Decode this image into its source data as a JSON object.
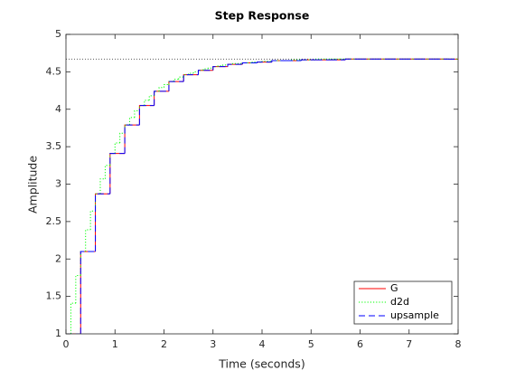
{
  "chart_data": {
    "type": "step",
    "title": "Step Response",
    "xlabel": "Time (seconds)",
    "ylabel": "Amplitude",
    "xlim": [
      0,
      8
    ],
    "ylim": [
      1,
      5
    ],
    "xticks": [
      0,
      1,
      2,
      3,
      4,
      5,
      6,
      7,
      8
    ],
    "yticks": [
      1,
      1.5,
      2,
      2.5,
      3,
      3.5,
      4,
      4.5,
      5
    ],
    "steady_state": 4.67,
    "legend": "lower right",
    "series": [
      {
        "name": "G",
        "color": "#ff0000",
        "style": "solid",
        "x": [
          0,
          0.3,
          0.6,
          0.9,
          1.2,
          1.5,
          1.8,
          2.1,
          2.4,
          2.7,
          3,
          3.3,
          3.6,
          3.9,
          4.2,
          4.5,
          4.8,
          5.1,
          5.4,
          5.7,
          6,
          6.3,
          6.6,
          6.9,
          7.2,
          7.5,
          7.8
        ],
        "values": [
          1,
          2.1,
          2.87,
          3.41,
          3.79,
          4.05,
          4.24,
          4.37,
          4.46,
          4.52,
          4.57,
          4.6,
          4.62,
          4.63,
          4.65,
          4.65,
          4.66,
          4.66,
          4.66,
          4.67,
          4.67,
          4.67,
          4.67,
          4.67,
          4.67,
          4.67,
          4.67
        ]
      },
      {
        "name": "d2d",
        "color": "#00ff00",
        "style": "dotted",
        "x": [
          0,
          0.1,
          0.2,
          0.3,
          0.4,
          0.5,
          0.6,
          0.7,
          0.8,
          0.9,
          1,
          1.1,
          1.2,
          1.3,
          1.4,
          1.5,
          1.6,
          1.7,
          1.8,
          1.9,
          2,
          2.1,
          2.2,
          2.3,
          2.4,
          2.5,
          2.6,
          2.7,
          2.8,
          2.9,
          3,
          3.1,
          3.2,
          3.3,
          3.4,
          3.5,
          3.6,
          3.7,
          3.8,
          3.9,
          4,
          4.1,
          4.2,
          4.3,
          4.4,
          4.5,
          4.6,
          4.7,
          4.8,
          4.9,
          5,
          5.1,
          5.2,
          5.3,
          5.4,
          5.5,
          5.6,
          5.7,
          5.8,
          5.9,
          6,
          6.1,
          6.2,
          6.3,
          6.4,
          6.5,
          6.6,
          6.7,
          6.8,
          6.9,
          7,
          7.1,
          7.2,
          7.3,
          7.4,
          7.5,
          7.6,
          7.7,
          7.8,
          7.9
        ],
        "values": [
          1,
          1.41,
          1.78,
          2.1,
          2.39,
          2.64,
          2.87,
          3.07,
          3.25,
          3.41,
          3.55,
          3.68,
          3.79,
          3.89,
          3.98,
          4.05,
          4.12,
          4.18,
          4.24,
          4.29,
          4.33,
          4.37,
          4.4,
          4.43,
          4.46,
          4.48,
          4.5,
          4.52,
          4.54,
          4.55,
          4.57,
          4.58,
          4.59,
          4.6,
          4.61,
          4.61,
          4.62,
          4.62,
          4.63,
          4.63,
          4.64,
          4.64,
          4.65,
          4.65,
          4.65,
          4.65,
          4.66,
          4.66,
          4.66,
          4.66,
          4.66,
          4.67,
          4.67,
          4.67,
          4.67,
          4.67,
          4.67,
          4.67,
          4.67,
          4.67,
          4.67,
          4.67,
          4.67,
          4.67,
          4.67,
          4.67,
          4.67,
          4.67,
          4.67,
          4.67,
          4.67,
          4.67,
          4.67,
          4.67,
          4.67,
          4.67,
          4.67,
          4.67,
          4.67,
          4.67
        ]
      },
      {
        "name": "upsample",
        "color": "#0000ff",
        "style": "dashed",
        "x": [
          0,
          0.3,
          0.6,
          0.9,
          1.2,
          1.5,
          1.8,
          2.1,
          2.4,
          2.7,
          3,
          3.3,
          3.6,
          3.9,
          4.2,
          4.5,
          4.8,
          5.1,
          5.4,
          5.7,
          6,
          6.3,
          6.6,
          6.9,
          7.2,
          7.5,
          7.8
        ],
        "values": [
          1,
          2.1,
          2.87,
          3.41,
          3.79,
          4.05,
          4.24,
          4.37,
          4.46,
          4.52,
          4.57,
          4.6,
          4.62,
          4.63,
          4.65,
          4.65,
          4.66,
          4.66,
          4.66,
          4.67,
          4.67,
          4.67,
          4.67,
          4.67,
          4.67,
          4.67,
          4.67
        ]
      }
    ]
  }
}
